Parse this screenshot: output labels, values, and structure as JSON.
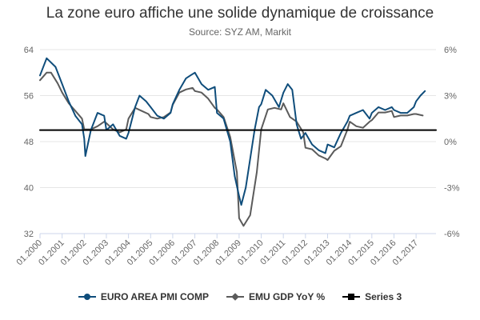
{
  "chart_data": {
    "type": "line",
    "title": "La zone euro affiche une solide dynamique de croissance",
    "subtitle": "Source: SYZ AM, Markit",
    "x_categories": [
      "01.2000",
      "01.2001",
      "01.2002",
      "01.2003",
      "01.2004",
      "01.2005",
      "01.2006",
      "01.2007",
      "01.2008",
      "01.2009",
      "01.2010",
      "01.2011",
      "01.2012",
      "01.2013",
      "01.2014",
      "01.2015",
      "01.2016",
      "01.2017"
    ],
    "y_left": {
      "min": 32,
      "max": 64,
      "ticks": [
        32,
        40,
        48,
        56,
        64
      ]
    },
    "y_right": {
      "min": -6,
      "max": 6,
      "ticks": [
        "-6%",
        "-3%",
        "0%",
        "3%",
        "6%"
      ],
      "tick_values": [
        -6,
        -3,
        0,
        3,
        6
      ]
    },
    "grid": true,
    "legend_position": "bottom",
    "series": [
      {
        "name": "EURO AREA PMI COMP",
        "axis": "left",
        "color": "#0f4d7b",
        "points": [
          [
            2000.0,
            59.5
          ],
          [
            2000.3,
            62.5
          ],
          [
            2000.7,
            61.0
          ],
          [
            2001.0,
            58.0
          ],
          [
            2001.3,
            55.0
          ],
          [
            2001.6,
            52.5
          ],
          [
            2001.9,
            51.0
          ],
          [
            2002.0,
            48.5
          ],
          [
            2002.05,
            45.5
          ],
          [
            2002.3,
            50.0
          ],
          [
            2002.6,
            53.0
          ],
          [
            2002.9,
            52.5
          ],
          [
            2003.0,
            50.0
          ],
          [
            2003.3,
            51.0
          ],
          [
            2003.6,
            49.0
          ],
          [
            2003.9,
            48.5
          ],
          [
            2004.0,
            49.5
          ],
          [
            2004.3,
            54.0
          ],
          [
            2004.5,
            56.0
          ],
          [
            2004.8,
            55.0
          ],
          [
            2005.0,
            54.0
          ],
          [
            2005.3,
            52.5
          ],
          [
            2005.6,
            52.0
          ],
          [
            2005.9,
            53.0
          ],
          [
            2006.0,
            54.5
          ],
          [
            2006.3,
            57.0
          ],
          [
            2006.6,
            59.0
          ],
          [
            2006.8,
            59.5
          ],
          [
            2007.0,
            60.0
          ],
          [
            2007.3,
            58.0
          ],
          [
            2007.6,
            57.0
          ],
          [
            2007.9,
            57.5
          ],
          [
            2008.0,
            53.0
          ],
          [
            2008.3,
            52.0
          ],
          [
            2008.6,
            48.0
          ],
          [
            2008.8,
            42.0
          ],
          [
            2009.0,
            38.5
          ],
          [
            2009.1,
            37.0
          ],
          [
            2009.3,
            40.0
          ],
          [
            2009.5,
            45.0
          ],
          [
            2009.7,
            50.0
          ],
          [
            2009.9,
            54.0
          ],
          [
            2010.0,
            54.5
          ],
          [
            2010.2,
            57.0
          ],
          [
            2010.5,
            56.0
          ],
          [
            2010.8,
            54.0
          ],
          [
            2011.0,
            56.5
          ],
          [
            2011.2,
            58.0
          ],
          [
            2011.4,
            57.0
          ],
          [
            2011.6,
            51.0
          ],
          [
            2011.8,
            48.5
          ],
          [
            2012.0,
            49.5
          ],
          [
            2012.3,
            47.5
          ],
          [
            2012.6,
            46.5
          ],
          [
            2012.9,
            46.0
          ],
          [
            2013.0,
            47.5
          ],
          [
            2013.3,
            47.0
          ],
          [
            2013.6,
            49.5
          ],
          [
            2013.9,
            51.5
          ],
          [
            2014.0,
            52.5
          ],
          [
            2014.3,
            53.0
          ],
          [
            2014.6,
            53.5
          ],
          [
            2014.9,
            52.0
          ],
          [
            2015.0,
            53.0
          ],
          [
            2015.3,
            54.0
          ],
          [
            2015.6,
            53.5
          ],
          [
            2015.9,
            54.0
          ],
          [
            2016.0,
            53.5
          ],
          [
            2016.3,
            53.0
          ],
          [
            2016.6,
            53.0
          ],
          [
            2016.9,
            54.0
          ],
          [
            2017.0,
            55.0
          ],
          [
            2017.2,
            56.0
          ],
          [
            2017.4,
            56.8
          ]
        ]
      },
      {
        "name": "EMU GDP YoY %",
        "axis": "right",
        "color": "#5b5b5b",
        "points": [
          [
            2000.0,
            4.0
          ],
          [
            2000.3,
            4.5
          ],
          [
            2000.5,
            4.5
          ],
          [
            2000.8,
            3.8
          ],
          [
            2001.0,
            3.2
          ],
          [
            2001.3,
            2.5
          ],
          [
            2001.6,
            2.0
          ],
          [
            2001.9,
            1.5
          ],
          [
            2002.0,
            0.8
          ],
          [
            2002.3,
            0.8
          ],
          [
            2002.6,
            1.0
          ],
          [
            2002.9,
            1.3
          ],
          [
            2003.0,
            1.2
          ],
          [
            2003.3,
            0.8
          ],
          [
            2003.6,
            0.6
          ],
          [
            2003.9,
            0.8
          ],
          [
            2004.0,
            1.5
          ],
          [
            2004.3,
            2.2
          ],
          [
            2004.6,
            2.0
          ],
          [
            2004.9,
            1.8
          ],
          [
            2005.0,
            1.6
          ],
          [
            2005.3,
            1.5
          ],
          [
            2005.6,
            1.6
          ],
          [
            2005.9,
            1.9
          ],
          [
            2006.0,
            2.4
          ],
          [
            2006.3,
            3.2
          ],
          [
            2006.6,
            3.4
          ],
          [
            2006.9,
            3.5
          ],
          [
            2007.0,
            3.3
          ],
          [
            2007.3,
            3.2
          ],
          [
            2007.6,
            2.8
          ],
          [
            2007.9,
            2.2
          ],
          [
            2008.0,
            2.1
          ],
          [
            2008.3,
            1.6
          ],
          [
            2008.6,
            0.3
          ],
          [
            2008.9,
            -2.0
          ],
          [
            2009.0,
            -5.0
          ],
          [
            2009.2,
            -5.5
          ],
          [
            2009.5,
            -4.8
          ],
          [
            2009.8,
            -2.0
          ],
          [
            2010.0,
            0.8
          ],
          [
            2010.3,
            2.1
          ],
          [
            2010.6,
            2.2
          ],
          [
            2010.9,
            2.1
          ],
          [
            2011.0,
            2.5
          ],
          [
            2011.3,
            1.6
          ],
          [
            2011.6,
            1.3
          ],
          [
            2011.9,
            0.6
          ],
          [
            2012.0,
            -0.4
          ],
          [
            2012.3,
            -0.5
          ],
          [
            2012.6,
            -0.9
          ],
          [
            2012.9,
            -1.1
          ],
          [
            2013.0,
            -1.2
          ],
          [
            2013.3,
            -0.6
          ],
          [
            2013.6,
            -0.3
          ],
          [
            2013.9,
            0.8
          ],
          [
            2014.0,
            1.3
          ],
          [
            2014.3,
            1.0
          ],
          [
            2014.6,
            0.9
          ],
          [
            2014.9,
            1.3
          ],
          [
            2015.0,
            1.4
          ],
          [
            2015.3,
            1.9
          ],
          [
            2015.6,
            1.9
          ],
          [
            2015.9,
            2.0
          ],
          [
            2016.0,
            1.6
          ],
          [
            2016.3,
            1.7
          ],
          [
            2016.6,
            1.7
          ],
          [
            2016.9,
            1.8
          ],
          [
            2017.0,
            1.8
          ],
          [
            2017.3,
            1.7
          ]
        ]
      },
      {
        "name": "Series 3",
        "axis": "left",
        "color": "#000000",
        "points": [
          [
            2000.0,
            50
          ],
          [
            2017.9,
            50
          ]
        ]
      }
    ]
  }
}
